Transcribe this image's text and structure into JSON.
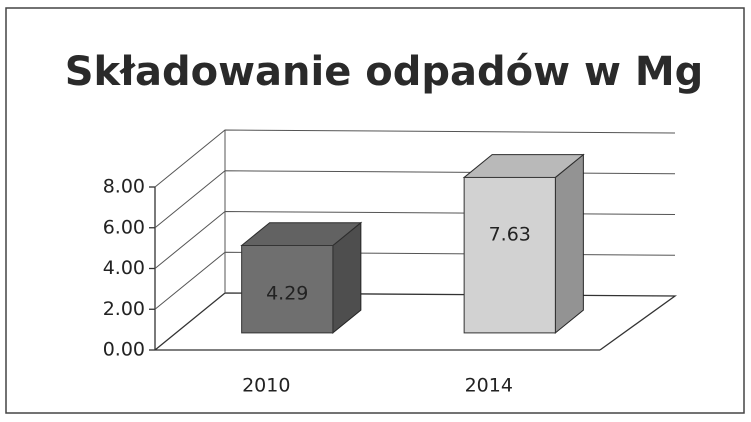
{
  "chart_data": {
    "type": "bar3d",
    "title": "Składowanie odpadów w Mg",
    "categories": [
      "2010",
      "2014"
    ],
    "values": [
      4.29,
      7.63
    ],
    "colors": [
      "#6f6f6f",
      "#d2d2d2"
    ],
    "ylim": [
      0,
      8
    ],
    "yticks": [
      {
        "value": 0,
        "label": "0.00"
      },
      {
        "value": 2,
        "label": "2.00"
      },
      {
        "value": 4,
        "label": "4.00"
      },
      {
        "value": 6,
        "label": "6.00"
      },
      {
        "value": 8,
        "label": "8.00"
      }
    ],
    "grid": true
  }
}
